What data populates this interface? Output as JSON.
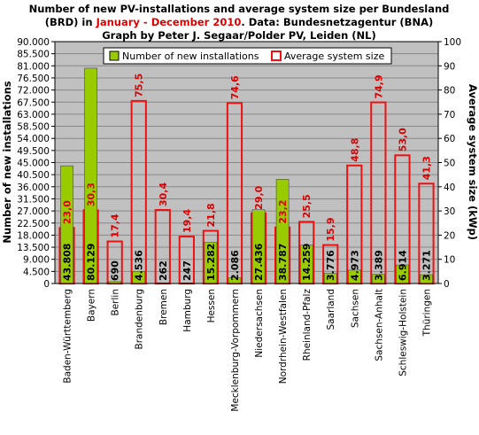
{
  "title": {
    "line1": "Number of new PV-installations and average system size per Bundesland",
    "line2_pre": "(BRD) in ",
    "line2_period": "January - December 2010",
    "line2_post": ". Data: Bundesnetzagentur (BNA)",
    "line3": "Graph by Peter J. Segaar/Polder PV, Leiden (NL)"
  },
  "colors": {
    "background": "#c0c0c0",
    "count_bar": "#99cc00",
    "size_bar_stroke": "#ee1111",
    "size_label": "#dd0000",
    "gridline": "#888888"
  },
  "chart_data": {
    "type": "bar",
    "categories": [
      "Baden-Württemberg",
      "Bayern",
      "Berlin",
      "Brandenburg",
      "Bremen",
      "Hamburg",
      "Hessen",
      "Mecklenburg-Vorpommern",
      "Niedersachsen",
      "Nordrhein-Westfalen",
      "Rheinland-Pfalz",
      "Saarland",
      "Sachsen",
      "Sachsen-Anhalt",
      "Schleswig-Holstein",
      "Thüringen"
    ],
    "series": [
      {
        "name": "Number of new installations",
        "axis": "left",
        "values": [
          43808,
          80129,
          690,
          4536,
          262,
          247,
          15282,
          2086,
          27436,
          38787,
          14259,
          3776,
          4973,
          3389,
          6914,
          3271
        ],
        "labels": [
          "43.808",
          "80.129",
          "690",
          "4.536",
          "262",
          "247",
          "15.282",
          "2.086",
          "27.436",
          "38.787",
          "14.259",
          "3.776",
          "4.973",
          "3.389",
          "6.914",
          "3.271"
        ]
      },
      {
        "name": "Average system size",
        "axis": "right",
        "values": [
          23.0,
          30.3,
          17.4,
          75.5,
          30.4,
          19.4,
          21.8,
          74.6,
          29.0,
          23.2,
          25.5,
          15.9,
          48.8,
          74.9,
          53.0,
          41.3
        ],
        "labels": [
          "23,0",
          "30,3",
          "17,4",
          "75,5",
          "30,4",
          "19,4",
          "21,8",
          "74,6",
          "29,0",
          "23,2",
          "25,5",
          "15,9",
          "48,8",
          "74,9",
          "53,0",
          "41,3"
        ]
      }
    ],
    "ylabel": "Number of new installations",
    "y2label": "Average system size (kWp)",
    "ylim": [
      0,
      90000
    ],
    "y2lim": [
      0,
      100
    ],
    "yticks": [
      "0",
      "4.500",
      "9.000",
      "13.500",
      "18.000",
      "22.500",
      "27.000",
      "31.500",
      "36.000",
      "40.500",
      "45.000",
      "49.500",
      "54.000",
      "58.500",
      "63.000",
      "67.500",
      "72.000",
      "76.500",
      "81.000",
      "85.500",
      "90.000"
    ],
    "y2ticks": [
      "0",
      "10",
      "20",
      "30",
      "40",
      "50",
      "60",
      "70",
      "80",
      "90",
      "100"
    ],
    "grid": true,
    "legend_position": "top-right"
  }
}
